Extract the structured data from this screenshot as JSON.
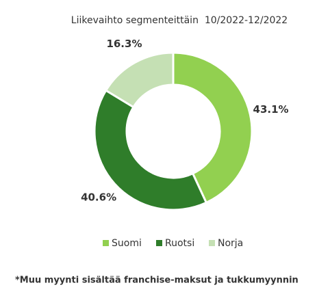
{
  "chart_data": {
    "type": "donut",
    "title": "Liikevaihto segmenteittäin  10/2022-12/2022",
    "categories": [
      "Suomi",
      "Ruotsi",
      "Norja"
    ],
    "values": [
      43.1,
      40.6,
      16.3
    ],
    "value_labels": [
      "43.1%",
      "40.6%",
      "16.3%"
    ],
    "colors": [
      "#92d050",
      "#2f7d2a",
      "#c5e0b4"
    ],
    "legend": "bottom",
    "footnote": "*Muu myynti sisältää franchise-maksut ja tukkumyynnin"
  }
}
